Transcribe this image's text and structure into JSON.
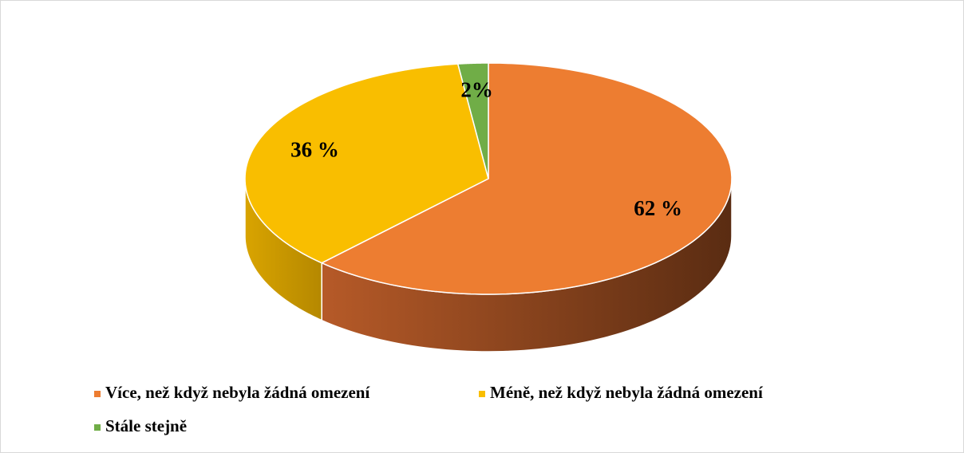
{
  "chart_data": {
    "type": "pie",
    "categories": [
      "Více, než když nebyla žádná omezení",
      "Méně, než když nebyla žádná omezení",
      "Stále stejně"
    ],
    "values": [
      62,
      36,
      2
    ],
    "value_labels": [
      "62 %",
      "36 %",
      "2%"
    ],
    "colors": [
      "#ed7d31",
      "#f9be00",
      "#70ad47"
    ],
    "legend": "bottom"
  }
}
